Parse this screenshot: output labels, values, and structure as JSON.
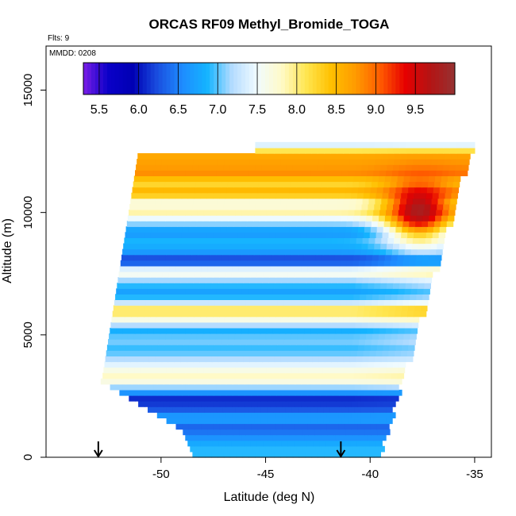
{
  "chart_data": {
    "type": "heatmap",
    "title": "ORCAS RF09 Methyl_Bromide_TOGA",
    "xlabel": "Latitude (deg N)",
    "ylabel": "Altitude (m)",
    "notes": {
      "flights": "Flts: 9",
      "date": "MMDD: 0208"
    },
    "xlim": [
      -55.5,
      -34.2
    ],
    "ylim": [
      0,
      16800
    ],
    "x_ticks": [
      -50,
      -45,
      -40,
      -35
    ],
    "x_tick_labels": [
      "-50",
      "-45",
      "-40",
      "-35"
    ],
    "y_ticks": [
      0,
      5000,
      10000,
      15000
    ],
    "y_tick_labels": [
      "0",
      "5000",
      "10000",
      "15000"
    ],
    "colorbar": {
      "min": 5.3,
      "max": 10.0,
      "ticks": [
        5.5,
        6.0,
        6.5,
        7.0,
        7.5,
        8.0,
        8.5,
        9.0,
        9.5
      ],
      "tick_labels": [
        "5.5",
        "6.0",
        "6.5",
        "7.0",
        "7.5",
        "8.0",
        "8.5",
        "9.0",
        "9.5"
      ],
      "palette": [
        "#7a1ee6",
        "#0a00c8",
        "#0000b4",
        "#1a4fe0",
        "#1e8cff",
        "#14b4ff",
        "#b4dcff",
        "#f0fbff",
        "#fffac8",
        "#ffe650",
        "#ffc000",
        "#ff9a00",
        "#ff5a00",
        "#e60000",
        "#b41414",
        "#963232"
      ]
    },
    "markers": [
      {
        "label": "down-arrow",
        "x": -53.0
      },
      {
        "label": "down-arrow",
        "x": -41.4
      }
    ],
    "region": {
      "lat_range": [
        -53.3,
        -35.2
      ],
      "alt_range": [
        0,
        12700
      ],
      "cell_lat_step": 0.3,
      "cell_alt_step": 230
    },
    "layers": [
      {
        "alt": 300,
        "value": 6.9
      },
      {
        "alt": 700,
        "value": 6.6
      },
      {
        "alt": 1100,
        "value": 6.3
      },
      {
        "alt": 1500,
        "value": 6.8
      },
      {
        "alt": 1900,
        "value": 6.2
      },
      {
        "alt": 2300,
        "value": 6.1
      },
      {
        "alt": 2700,
        "value": 7.0
      },
      {
        "alt": 3100,
        "value": 7.9
      },
      {
        "alt": 3500,
        "value": 7.6
      },
      {
        "alt": 3900,
        "value": 7.2
      },
      {
        "alt": 4300,
        "value": 6.9
      },
      {
        "alt": 4700,
        "value": 7.1
      },
      {
        "alt": 5100,
        "value": 6.8
      },
      {
        "alt": 5500,
        "value": 7.6
      },
      {
        "alt": 5900,
        "value": 8.3
      },
      {
        "alt": 6300,
        "value": 7.0
      },
      {
        "alt": 6700,
        "value": 6.7
      },
      {
        "alt": 7100,
        "value": 7.1
      },
      {
        "alt": 7500,
        "value": 7.8
      },
      {
        "alt": 7900,
        "value": 6.0
      },
      {
        "alt": 8300,
        "value": 6.7
      },
      {
        "alt": 8700,
        "value": 6.9
      },
      {
        "alt": 9100,
        "value": 6.6
      },
      {
        "alt": 9500,
        "value": 7.2
      },
      {
        "alt": 9900,
        "value": 7.9
      },
      {
        "alt": 10300,
        "value": 7.6
      },
      {
        "alt": 10700,
        "value": 8.6
      },
      {
        "alt": 11100,
        "value": 8.2
      },
      {
        "alt": 11500,
        "value": 8.8
      },
      {
        "alt": 11900,
        "value": 8.7
      },
      {
        "alt": 12300,
        "value": 8.6
      },
      {
        "alt": 12600,
        "value": 7.4
      }
    ],
    "hotspot": {
      "lat": -37.8,
      "alt": 10000,
      "value": 9.8,
      "lat_radius": 1.6,
      "alt_radius": 1200
    }
  }
}
